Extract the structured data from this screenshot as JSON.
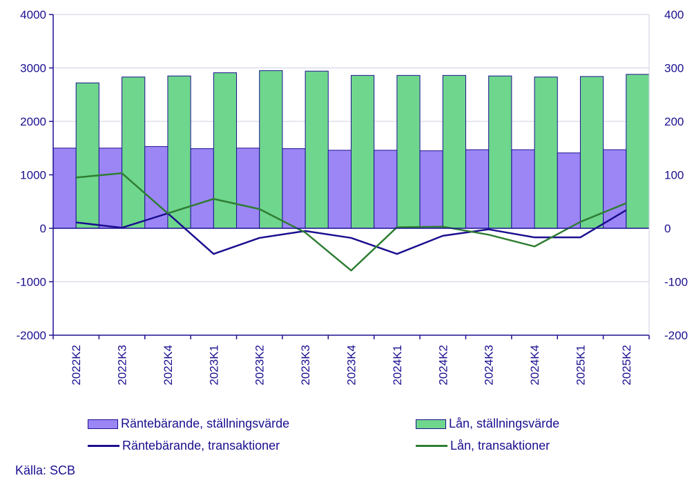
{
  "chart_data": {
    "type": "bar",
    "categories": [
      "2022K2",
      "2022K3",
      "2022K4",
      "2023K1",
      "2023K2",
      "2023K3",
      "2023K4",
      "2024K1",
      "2024K2",
      "2024K3",
      "2024K4",
      "2025K1",
      "2025K2"
    ],
    "left_axis": {
      "ylim": [
        -2000,
        4000
      ],
      "ticks": [
        -2000,
        -1000,
        0,
        1000,
        2000,
        3000,
        4000
      ]
    },
    "right_axis": {
      "ylim": [
        -200,
        400
      ],
      "ticks": [
        -200,
        -100,
        0,
        100,
        200,
        300,
        400
      ]
    },
    "grid": true,
    "legend_position": "bottom",
    "series": [
      {
        "name": "Räntebärande, ställningsvärde",
        "kind": "bar",
        "axis": "left",
        "color": "#9c86f6",
        "values": [
          1500,
          1500,
          1530,
          1490,
          1500,
          1490,
          1460,
          1460,
          1450,
          1470,
          1470,
          1410,
          1470
        ]
      },
      {
        "name": "Lån, ställningsvärde",
        "kind": "bar",
        "axis": "left",
        "color": "#6fd68d",
        "values": [
          2720,
          2830,
          2850,
          2910,
          2950,
          2940,
          2860,
          2860,
          2860,
          2850,
          2830,
          2840,
          2880
        ]
      },
      {
        "name": "Räntebärande, transaktioner",
        "kind": "line",
        "axis": "right",
        "color": "#1a0f8f",
        "values": [
          11,
          1,
          28,
          -48,
          -18,
          -5,
          -18,
          -48,
          -14,
          -2,
          -17,
          -17,
          34
        ]
      },
      {
        "name": "Lån, transaktioner",
        "kind": "line",
        "axis": "right",
        "color": "#2e7d32",
        "values": [
          95,
          103,
          28,
          55,
          36,
          -8,
          -79,
          2,
          3,
          -12,
          -34,
          12,
          47
        ]
      }
    ]
  },
  "source_label": "Källa: SCB"
}
